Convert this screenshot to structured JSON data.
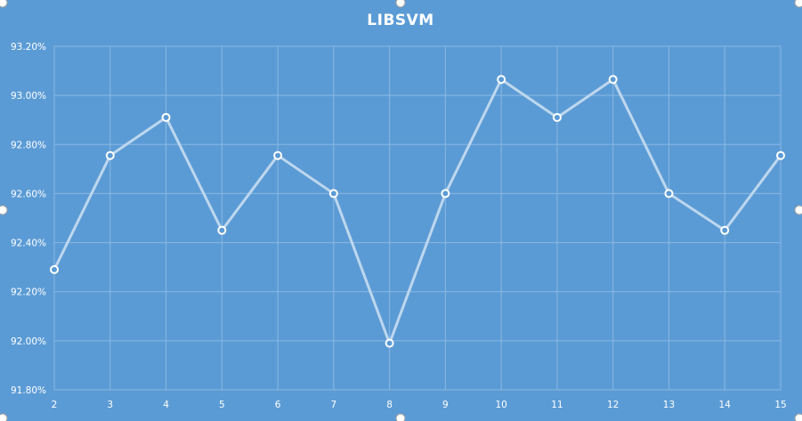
{
  "chart_data": {
    "type": "line",
    "title": "LIBSVM",
    "xlabel": "",
    "ylabel": "",
    "x": [
      2,
      3,
      4,
      5,
      6,
      7,
      8,
      9,
      10,
      11,
      12,
      13,
      14,
      15
    ],
    "x_tick_labels": [
      "2",
      "3",
      "4",
      "5",
      "6",
      "7",
      "8",
      "9",
      "10",
      "11",
      "12",
      "13",
      "14",
      "15"
    ],
    "series": [
      {
        "values": [
          92.29,
          92.755,
          92.91,
          92.45,
          92.755,
          92.6,
          91.99,
          92.6,
          93.065,
          92.91,
          93.065,
          92.6,
          92.45,
          92.755
        ]
      }
    ],
    "ylim": [
      91.8,
      93.2
    ],
    "y_ticks": [
      91.8,
      92.0,
      92.2,
      92.4,
      92.6,
      92.8,
      93.0,
      93.2
    ],
    "y_tick_labels": [
      "91.80%",
      "92.00%",
      "92.20%",
      "92.40%",
      "92.60%",
      "92.80%",
      "93.00%",
      "93.20%"
    ],
    "grid": true,
    "legend": "none",
    "colors": {
      "background": "#5b9bd5",
      "line": "#bdd7ee",
      "marker_fill": "#5b9bd5",
      "marker_stroke": "#ffffff",
      "grid": "#8ab8e3",
      "text": "#ffffff"
    }
  }
}
